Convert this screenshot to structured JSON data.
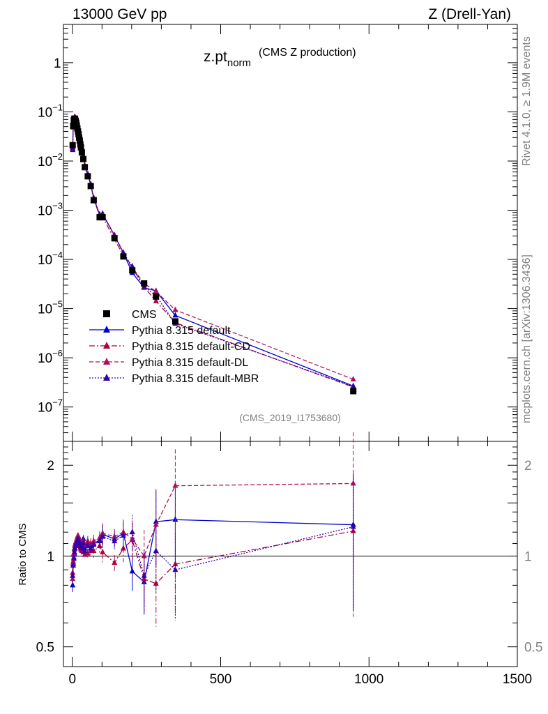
{
  "header": {
    "energy_label": "13000 GeV pp",
    "process_label": "Z (Drell-Yan)"
  },
  "side_labels": {
    "rivet": "Rivet 4.1.0, ≥ 1.9M events",
    "mcplots": "mcplots.cern.ch [arXiv:1306.3436]"
  },
  "chart_data": {
    "type": "line",
    "title": "z.pt",
    "title_sub": "norm",
    "title_suffix": "(CMS Z production)",
    "watermark": "(CMS_2019_I1753680)",
    "xlim": [
      -30,
      1500
    ],
    "main": {
      "yscale": "log",
      "ylim": [
        2e-08,
        6
      ],
      "ticks": [
        {
          "v": 1,
          "label": "1"
        },
        {
          "v": 0.1,
          "label": "10",
          "sup": "−1"
        },
        {
          "v": 0.01,
          "label": "10",
          "sup": "−2"
        },
        {
          "v": 0.001,
          "label": "10",
          "sup": "−3"
        },
        {
          "v": 0.0001,
          "label": "10",
          "sup": "−4"
        },
        {
          "v": 1e-05,
          "label": "10",
          "sup": "−5"
        },
        {
          "v": 1e-06,
          "label": "10",
          "sup": "−6"
        },
        {
          "v": 1e-07,
          "label": "10",
          "sup": "−7"
        }
      ]
    },
    "ratio": {
      "yscale": "log",
      "ylim": [
        0.43,
        2.4
      ],
      "ylabel": "Ratio to CMS",
      "ticks": [
        {
          "v": 0.5,
          "label": "0.5"
        },
        {
          "v": 1,
          "label": "1"
        },
        {
          "v": 2,
          "label": "2"
        }
      ]
    },
    "xticks": [
      {
        "v": 0,
        "label": "0"
      },
      {
        "v": 500,
        "label": "500"
      },
      {
        "v": 1000,
        "label": "1000"
      },
      {
        "v": 1500,
        "label": "1500"
      }
    ],
    "x": [
      1,
      3,
      5,
      7,
      9,
      11,
      13,
      15,
      17,
      19,
      21,
      23,
      25,
      27,
      29,
      32,
      37,
      42,
      52,
      62,
      72,
      92,
      102,
      142,
      172,
      202,
      242,
      282,
      347,
      947
    ],
    "cms": [
      0.021,
      0.052,
      0.068,
      0.073,
      0.072,
      0.066,
      0.06,
      0.053,
      0.046,
      0.04,
      0.035,
      0.03,
      0.026,
      0.022,
      0.019,
      0.015,
      0.011,
      0.0075,
      0.0049,
      0.0031,
      0.0016,
      0.00072,
      0.00072,
      0.00027,
      0.000115,
      6e-05,
      3.25e-05,
      1.76e-05,
      5.5e-06,
      2.1e-07
    ],
    "series": [
      {
        "name": "Pythia 8.315 default",
        "color": "#0000cc",
        "dash": "",
        "ratio": [
          0.8,
          0.94,
          0.98,
          1.02,
          1.06,
          1.09,
          1.1,
          1.12,
          1.14,
          1.16,
          1.15,
          1.13,
          1.11,
          1.09,
          1.07,
          1.09,
          1.14,
          1.06,
          1.11,
          1.08,
          1.1,
          1.13,
          1.18,
          1.14,
          1.19,
          0.89,
          0.82,
          1.3,
          1.32,
          1.27
        ]
      },
      {
        "name": "Pythia 8.315 default-CD",
        "color": "#b00040",
        "dash": "8,3,2,3",
        "ratio": [
          0.88,
          0.96,
          1.01,
          1.05,
          1.08,
          1.1,
          1.11,
          1.12,
          1.12,
          1.13,
          1.13,
          1.11,
          1.09,
          1.07,
          1.05,
          1.04,
          1.03,
          1.01,
          1.02,
          1.04,
          1.04,
          1.08,
          1.03,
          0.95,
          1.06,
          1.13,
          0.84,
          0.81,
          0.94,
          1.21
        ]
      },
      {
        "name": "Pythia 8.315 default-DL",
        "color": "#b0105a",
        "dash": "6,3",
        "ratio": [
          0.84,
          0.95,
          1.02,
          1.06,
          1.09,
          1.11,
          1.12,
          1.14,
          1.16,
          1.17,
          1.16,
          1.14,
          1.13,
          1.11,
          1.09,
          1.1,
          1.12,
          1.08,
          1.12,
          1.1,
          1.12,
          1.15,
          1.19,
          1.16,
          1.2,
          1.14,
          1.0,
          1.27,
          1.71,
          1.74
        ]
      },
      {
        "name": "Pythia 8.315 default-MBR",
        "color": "#3300aa",
        "dash": "2,2",
        "ratio": [
          0.86,
          0.93,
          0.99,
          1.03,
          1.06,
          1.08,
          1.1,
          1.11,
          1.13,
          1.14,
          1.13,
          1.12,
          1.1,
          1.08,
          1.06,
          1.07,
          1.1,
          1.04,
          1.08,
          1.06,
          1.09,
          1.12,
          1.16,
          1.12,
          1.17,
          1.2,
          0.86,
          1.04,
          0.9,
          1.25
        ]
      }
    ],
    "ratio_err": [
      0.05,
      0.03,
      0.03,
      0.02,
      0.02,
      0.02,
      0.02,
      0.02,
      0.02,
      0.02,
      0.02,
      0.02,
      0.02,
      0.02,
      0.02,
      0.03,
      0.03,
      0.03,
      0.04,
      0.04,
      0.05,
      0.05,
      0.08,
      0.06,
      0.1,
      0.14,
      0.22,
      0.28,
      0.32,
      0.48
    ]
  }
}
